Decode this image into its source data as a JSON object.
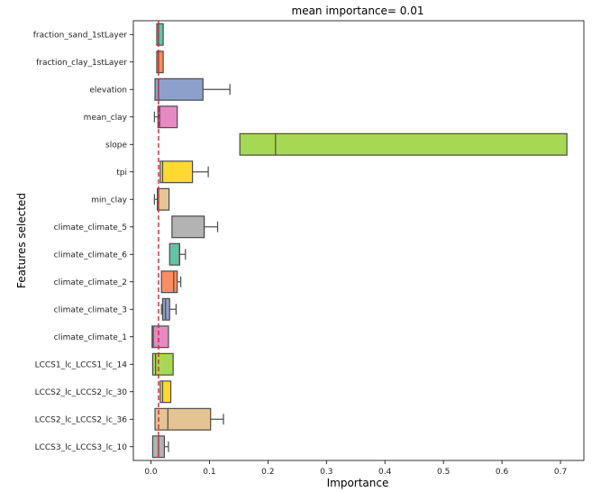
{
  "chart_data": {
    "type": "boxplot",
    "title": "mean importance= 0.01",
    "xlabel": "Importance",
    "ylabel": "Features selected",
    "xlim": [
      -0.03,
      0.74
    ],
    "xticks": [
      0.0,
      0.1,
      0.2,
      0.3,
      0.4,
      0.5,
      0.6,
      0.7
    ],
    "xtick_labels": [
      "0.0",
      "0.1",
      "0.2",
      "0.3",
      "0.4",
      "0.5",
      "0.6",
      "0.7"
    ],
    "mean_line": 0.013,
    "mean_line_color": "#d62728",
    "orientation": "horizontal",
    "categories": [
      "fraction_sand_1stLayer",
      "fraction_clay_1stLayer",
      "elevation",
      "mean_clay",
      "slope",
      "tpi",
      "min_clay",
      "climate_climate_5",
      "climate_climate_6",
      "climate_climate_2",
      "climate_climate_3",
      "climate_climate_1",
      "LCCS1_lc_LCCS1_lc_14",
      "LCCS2_lc_LCCS2_lc_30",
      "LCCS2_lc_LCCS2_lc_36",
      "LCCS3_lc_LCCS3_lc_10"
    ],
    "boxes": [
      {
        "whislo": 0.01,
        "q1": 0.01,
        "med": 0.013,
        "q3": 0.021,
        "whishi": 0.021,
        "color": "#66c2a5"
      },
      {
        "whislo": 0.01,
        "q1": 0.01,
        "med": 0.013,
        "q3": 0.021,
        "whishi": 0.021,
        "color": "#fc8d62"
      },
      {
        "whislo": 0.007,
        "q1": 0.007,
        "med": 0.013,
        "q3": 0.089,
        "whishi": 0.135,
        "color": "#8da0cb"
      },
      {
        "whislo": 0.006,
        "q1": 0.012,
        "med": 0.015,
        "q3": 0.045,
        "whishi": 0.045,
        "color": "#e78ac3"
      },
      {
        "whislo": 0.152,
        "q1": 0.152,
        "med": 0.213,
        "q3": 0.711,
        "whishi": 0.711,
        "color": "#a6d854"
      },
      {
        "whislo": 0.016,
        "q1": 0.016,
        "med": 0.02,
        "q3": 0.071,
        "whishi": 0.098,
        "color": "#ffd92f"
      },
      {
        "whislo": 0.006,
        "q1": 0.011,
        "med": 0.013,
        "q3": 0.031,
        "whishi": 0.031,
        "color": "#e5c494"
      },
      {
        "whislo": 0.036,
        "q1": 0.036,
        "med": 0.091,
        "q3": 0.091,
        "whishi": 0.114,
        "color": "#b3b3b3"
      },
      {
        "whislo": 0.032,
        "q1": 0.032,
        "med": 0.049,
        "q3": 0.049,
        "whishi": 0.059,
        "color": "#66c2a5"
      },
      {
        "whislo": 0.018,
        "q1": 0.018,
        "med": 0.039,
        "q3": 0.045,
        "whishi": 0.051,
        "color": "#fc8d62"
      },
      {
        "whislo": 0.018,
        "q1": 0.02,
        "med": 0.025,
        "q3": 0.032,
        "whishi": 0.043,
        "color": "#8da0cb"
      },
      {
        "whislo": 0.002,
        "q1": 0.002,
        "med": 0.004,
        "q3": 0.03,
        "whishi": 0.03,
        "color": "#e78ac3"
      },
      {
        "whislo": 0.003,
        "q1": 0.003,
        "med": 0.008,
        "q3": 0.038,
        "whishi": 0.038,
        "color": "#a6d854"
      },
      {
        "whislo": 0.016,
        "q1": 0.016,
        "med": 0.02,
        "q3": 0.034,
        "whishi": 0.034,
        "color": "#ffd92f"
      },
      {
        "whislo": 0.007,
        "q1": 0.007,
        "med": 0.029,
        "q3": 0.102,
        "whishi": 0.124,
        "color": "#e5c494"
      },
      {
        "whislo": 0.003,
        "q1": 0.003,
        "med": 0.013,
        "q3": 0.023,
        "whishi": 0.03,
        "color": "#b3b3b3"
      }
    ]
  }
}
